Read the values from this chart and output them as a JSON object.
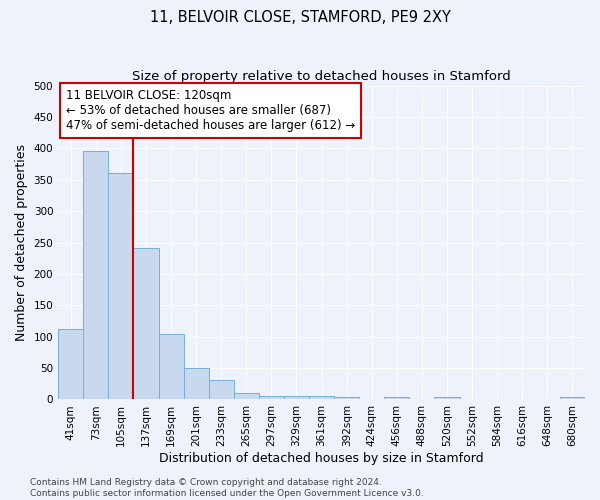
{
  "title": "11, BELVOIR CLOSE, STAMFORD, PE9 2XY",
  "subtitle": "Size of property relative to detached houses in Stamford",
  "xlabel": "Distribution of detached houses by size in Stamford",
  "ylabel": "Number of detached properties",
  "bin_labels": [
    "41sqm",
    "73sqm",
    "105sqm",
    "137sqm",
    "169sqm",
    "201sqm",
    "233sqm",
    "265sqm",
    "297sqm",
    "329sqm",
    "361sqm",
    "392sqm",
    "424sqm",
    "456sqm",
    "488sqm",
    "520sqm",
    "552sqm",
    "584sqm",
    "616sqm",
    "648sqm",
    "680sqm"
  ],
  "bar_values": [
    113,
    395,
    360,
    242,
    105,
    50,
    31,
    10,
    6,
    5,
    6,
    4,
    0,
    4,
    0,
    4,
    0,
    0,
    0,
    0,
    4
  ],
  "bar_color": "#c8d8ee",
  "bar_edge_color": "#7aaed8",
  "red_line_index": 2,
  "red_line_color": "#cc0000",
  "annotation_text": "11 BELVOIR CLOSE: 120sqm\n← 53% of detached houses are smaller (687)\n47% of semi-detached houses are larger (612) →",
  "annotation_box_color": "#ffffff",
  "annotation_box_edge": "#cc0000",
  "ylim": [
    0,
    500
  ],
  "yticks": [
    0,
    50,
    100,
    150,
    200,
    250,
    300,
    350,
    400,
    450,
    500
  ],
  "footnote": "Contains HM Land Registry data © Crown copyright and database right 2024.\nContains public sector information licensed under the Open Government Licence v3.0.",
  "background_color": "#eef2fa",
  "grid_color": "#ffffff",
  "title_fontsize": 10.5,
  "subtitle_fontsize": 9.5,
  "label_fontsize": 9,
  "tick_fontsize": 7.5,
  "annotation_fontsize": 8.5,
  "footnote_fontsize": 6.5
}
